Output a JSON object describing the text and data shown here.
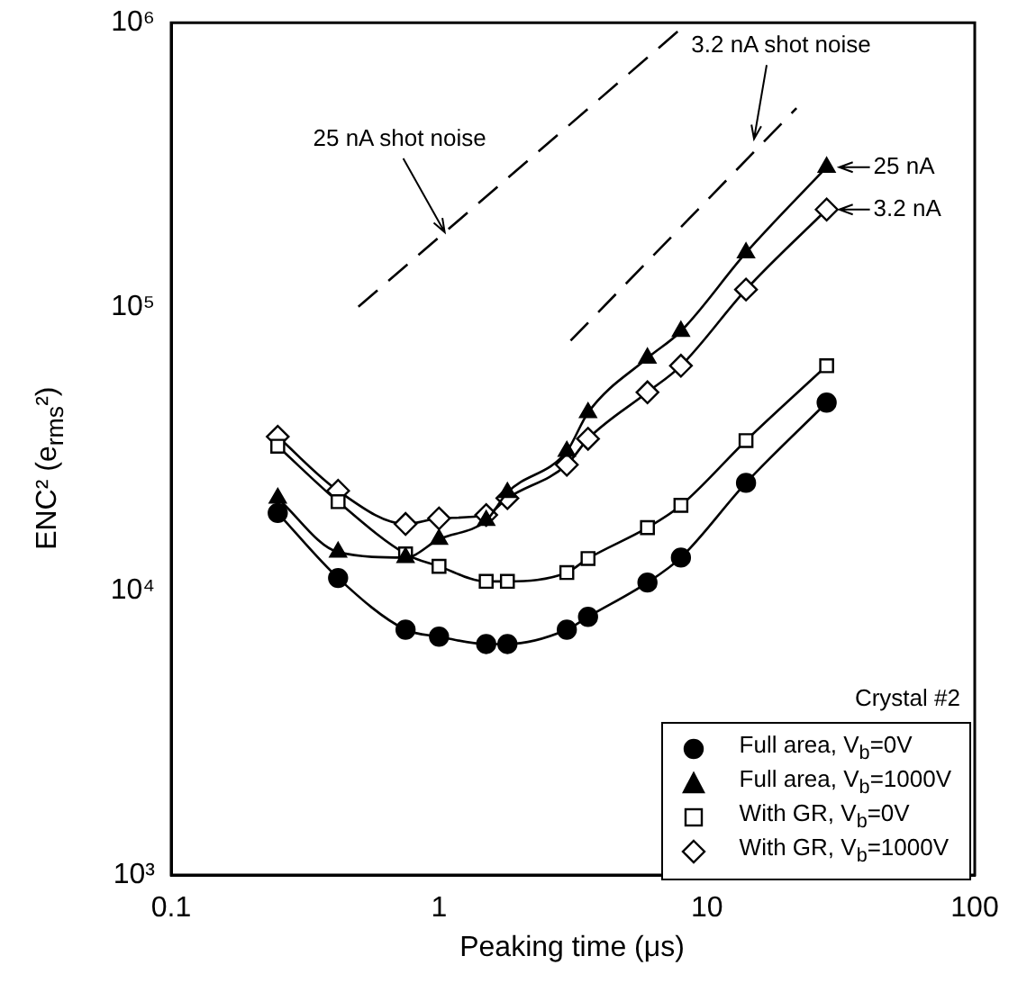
{
  "chart_data": {
    "type": "line",
    "xlabel": "Peaking time (μs)",
    "ylabel": "ENC² (e$_{rms}$²)",
    "log": "xy",
    "xlim": [
      0.1,
      100
    ],
    "ylim": [
      1000,
      1000000
    ],
    "xticks": [
      0.1,
      1,
      10,
      100
    ],
    "yticks": [
      {
        "value": 1000,
        "label": "10³"
      },
      {
        "value": 10000,
        "label": "10⁴"
      },
      {
        "value": 100000,
        "label": "10⁵"
      },
      {
        "value": 1000000,
        "label": "10⁶"
      }
    ],
    "grid": false,
    "legend": "bottom right",
    "legend_title": "Crystal #2",
    "series": [
      {
        "name": "Full area, V$_{b}$=0V",
        "color": "#000000",
        "marker": "circle",
        "x": [
          0.25,
          0.42,
          0.75,
          1,
          1.5,
          1.8,
          3,
          3.6,
          6,
          8,
          14,
          28
        ],
        "values": [
          18800,
          11100,
          7300,
          6900,
          6500,
          6500,
          7300,
          8100,
          10700,
          13100,
          24000,
          46000
        ]
      },
      {
        "name": "Full area, V$_{b}$=1000V",
        "color": "#000000",
        "marker": "triangle",
        "x": [
          0.25,
          0.42,
          0.75,
          1,
          1.5,
          1.8,
          3,
          3.6,
          6,
          8,
          14,
          28
        ],
        "values": [
          21200,
          13700,
          13100,
          15200,
          17700,
          22200,
          31000,
          42400,
          66000,
          82000,
          155000,
          310000
        ]
      },
      {
        "name": "With GR, V$_{b}$=0V",
        "color": "#000000",
        "marker": "square",
        "x": [
          0.25,
          0.42,
          0.75,
          1,
          1.5,
          1.8,
          3,
          3.6,
          6,
          8,
          14,
          28
        ],
        "values": [
          32300,
          20600,
          13500,
          12200,
          10800,
          10800,
          11600,
          13000,
          16700,
          20000,
          33800,
          62000
        ]
      },
      {
        "name": "With GR, V$_{b}$=1000V",
        "color": "#000000",
        "marker": "diamond",
        "x": [
          0.25,
          0.42,
          0.75,
          1,
          1.5,
          1.8,
          3,
          3.6,
          6,
          8,
          14,
          28
        ],
        "values": [
          34900,
          22500,
          17200,
          18000,
          18500,
          21200,
          27800,
          34300,
          50000,
          62000,
          115000,
          220000
        ]
      },
      {
        "color": "#000000",
        "marker": "none",
        "line_style": "dashed",
        "x": [
          0.5,
          8.5
        ],
        "values": [
          100000,
          1000000
        ]
      },
      {
        "color": "#000000",
        "marker": "none",
        "line_style": "dashed",
        "x": [
          3.1,
          21.6
        ],
        "values": [
          76000,
          500000
        ]
      }
    ],
    "annotations": [
      {
        "text": "25 nA shot noise",
        "x": 1.05,
        "y": 183000
      },
      {
        "text": "3.2 nA shot noise",
        "x": 15,
        "y": 390000
      },
      {
        "text": "25 nA",
        "x": 28,
        "y": 310000
      },
      {
        "text": "3.2 nA",
        "x": 28,
        "y": 220000
      }
    ]
  }
}
